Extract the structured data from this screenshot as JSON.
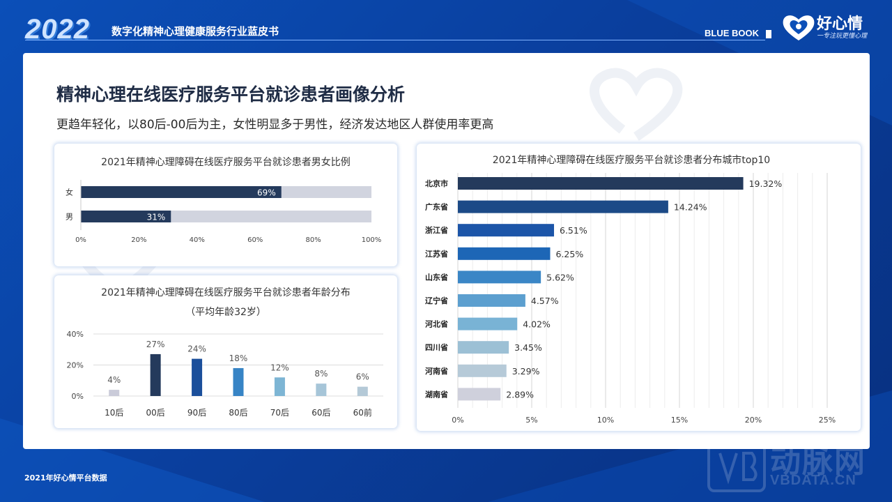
{
  "header": {
    "year": "2022",
    "report_title": "数字化精神心理健康服务行业蓝皮书",
    "blue_book": "BLUE BOOK",
    "logo_text": "好心情",
    "logo_slogan": "一专注玩更懂心理"
  },
  "page": {
    "title": "精神心理在线医疗服务平台就诊患者画像分析",
    "subtitle": "更趋年轻化，以80后-00后为主，女性明显多于男性，经济发达地区人群使用率更高"
  },
  "footer": {
    "source": "2021年好心情平台数据",
    "watermark_cn": "动脉网",
    "watermark_en": "VBDATA.CN"
  },
  "chart_data": [
    {
      "type": "bar",
      "orientation": "horizontal",
      "stacked_percent": true,
      "title": "2021年精神心理障碍在线医疗服务平台就诊患者男女比例",
      "categories": [
        "女",
        "男"
      ],
      "values": [
        69,
        31
      ],
      "data_labels": [
        "69%",
        "31%"
      ],
      "xlim": [
        0,
        100
      ],
      "xticks": [
        "0%",
        "20%",
        "40%",
        "60%",
        "80%",
        "100%"
      ],
      "colors": {
        "value": "#243a5c",
        "remainder": "#d1d4df"
      }
    },
    {
      "type": "bar",
      "title": "2021年精神心理障碍在线医疗服务平台就诊患者年龄分布",
      "subtitle": "（平均年龄32岁）",
      "categories": [
        "10后",
        "00后",
        "90后",
        "80后",
        "70后",
        "60后",
        "60前"
      ],
      "values": [
        4,
        27,
        24,
        18,
        12,
        8,
        6
      ],
      "data_labels": [
        "4%",
        "27%",
        "24%",
        "18%",
        "12%",
        "8%",
        "6%"
      ],
      "ylim": [
        0,
        40
      ],
      "yticks": [
        "0%",
        "20%",
        "40%"
      ],
      "colors": [
        "#cacbd9",
        "#243a5c",
        "#1b4f9b",
        "#3784c5",
        "#7db5d4",
        "#a6c5d8",
        "#b4c9d7"
      ]
    },
    {
      "type": "bar",
      "orientation": "horizontal",
      "title": "2021年精神心理障碍在线医疗服务平台就诊患者分布城市top10",
      "categories": [
        "北京市",
        "广东省",
        "浙江省",
        "江苏省",
        "山东省",
        "辽宁省",
        "河北省",
        "四川省",
        "河南省",
        "湖南省"
      ],
      "values": [
        19.32,
        14.24,
        6.51,
        6.25,
        5.62,
        4.57,
        4.02,
        3.45,
        3.29,
        2.89
      ],
      "data_labels": [
        "19.32%",
        "14.24%",
        "6.51%",
        "6.25%",
        "5.62%",
        "4.57%",
        "4.02%",
        "3.45%",
        "3.29%",
        "2.89%"
      ],
      "xlim": [
        0,
        25
      ],
      "xticks": [
        "0%",
        "5%",
        "10%",
        "15%",
        "20%",
        "25%"
      ],
      "grid": true,
      "colors": [
        "#243a5c",
        "#1c4a87",
        "#1c55a8",
        "#1d66b6",
        "#3a86c6",
        "#5c9fcf",
        "#79b3d5",
        "#9cc0d5",
        "#b6cad8",
        "#cfd0dc"
      ]
    }
  ]
}
